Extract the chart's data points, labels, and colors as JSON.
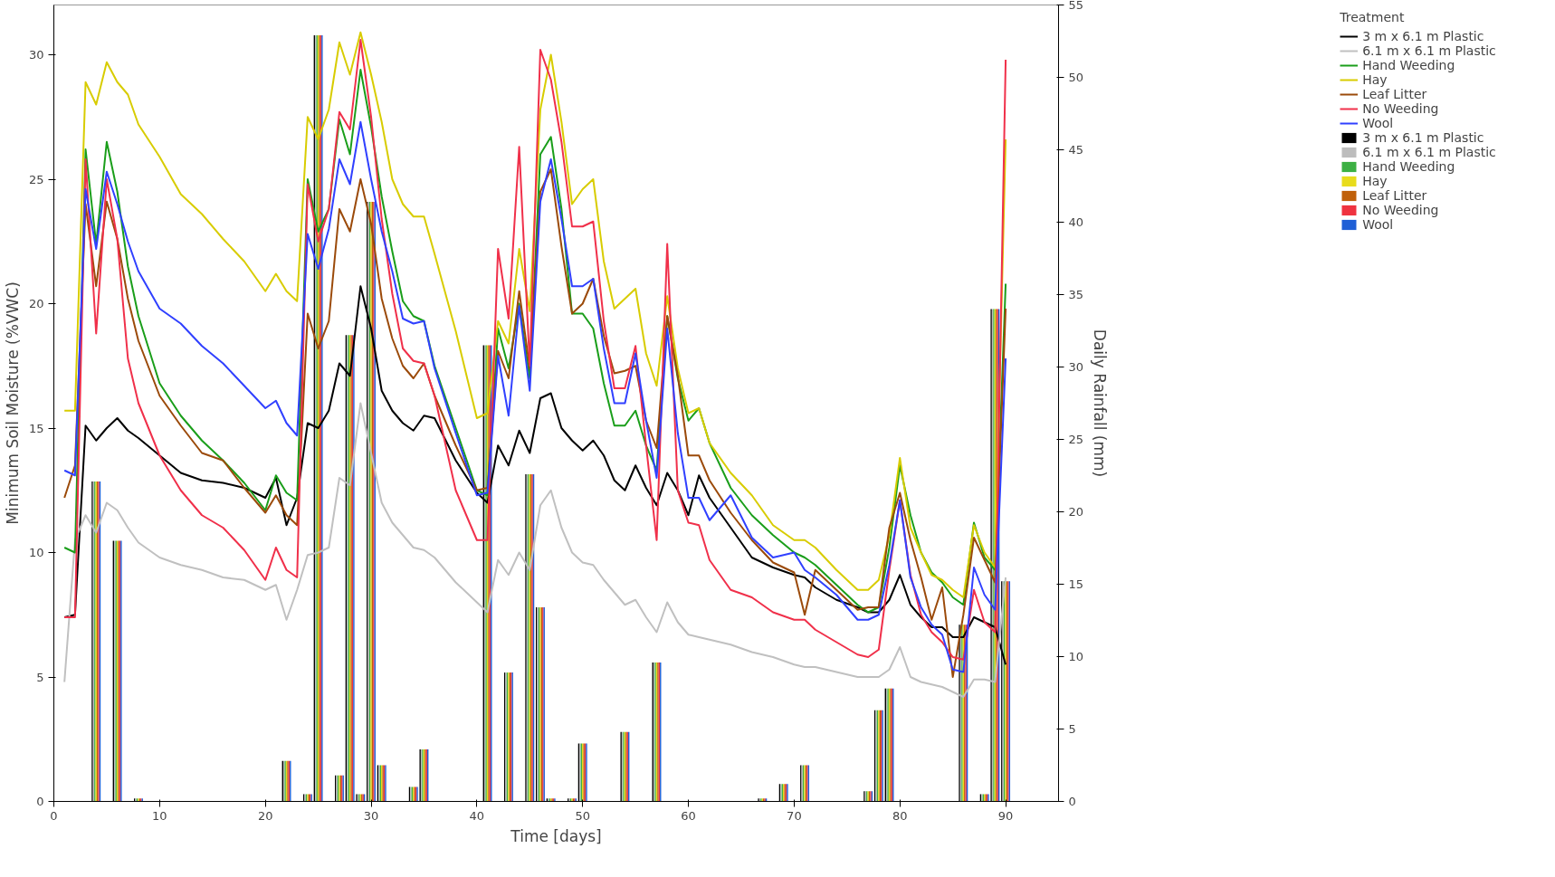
{
  "chart_data": {
    "type": "line",
    "xlabel": "Time [days]",
    "ylabel": "Minimum Soil Moisture (%VWC)",
    "y2label": "Daily Rainfall (mm)",
    "legend_title": "Treatment",
    "x": [
      1,
      2,
      3,
      4,
      5,
      6,
      7,
      8,
      10,
      12,
      14,
      16,
      18,
      20,
      21,
      22,
      23,
      24,
      25,
      26,
      27,
      28,
      29,
      30,
      31,
      32,
      33,
      34,
      35,
      36,
      38,
      40,
      41,
      42,
      43,
      44,
      45,
      46,
      47,
      48,
      49,
      50,
      51,
      52,
      53,
      54,
      55,
      56,
      57,
      58,
      59,
      60,
      61,
      62,
      64,
      66,
      68,
      70,
      71,
      72,
      74,
      76,
      77,
      78,
      79,
      80,
      81,
      82,
      83,
      84,
      85,
      86,
      87,
      88,
      89,
      90
    ],
    "xlim": [
      0,
      95
    ],
    "xticks": [
      0,
      10,
      20,
      30,
      40,
      50,
      60,
      70,
      80,
      90
    ],
    "ylim": [
      0,
      32
    ],
    "yticks": [
      0,
      5,
      10,
      15,
      20,
      25,
      30
    ],
    "y2lim": [
      0,
      55
    ],
    "y2ticks": [
      0,
      5,
      10,
      15,
      20,
      25,
      30,
      35,
      40,
      45,
      50,
      55
    ],
    "grid": false,
    "legend": "right",
    "series": [
      {
        "name": "3 m x 6.1 m Plastic",
        "color": "#000000",
        "values": [
          7.4,
          7.5,
          15.1,
          14.5,
          15.0,
          15.4,
          14.9,
          14.6,
          13.9,
          13.2,
          12.9,
          12.8,
          12.6,
          12.2,
          13.0,
          11.1,
          12.2,
          15.2,
          15.0,
          15.7,
          17.6,
          17.1,
          20.7,
          19.0,
          16.5,
          15.7,
          15.2,
          14.9,
          15.5,
          15.4,
          13.7,
          12.4,
          12.0,
          14.3,
          13.5,
          14.9,
          14.0,
          16.2,
          16.4,
          15.0,
          14.5,
          14.1,
          14.5,
          13.9,
          12.9,
          12.5,
          13.5,
          12.6,
          11.9,
          13.2,
          12.5,
          11.5,
          13.1,
          12.2,
          11.0,
          9.8,
          9.4,
          9.1,
          9.0,
          8.6,
          8.1,
          7.8,
          7.6,
          7.6,
          8.1,
          9.1,
          7.9,
          7.4,
          7.0,
          7.0,
          6.6,
          6.6,
          7.4,
          7.2,
          7.0,
          5.5
        ]
      },
      {
        "name": "6.1 m x 6.1 m Plastic",
        "color": "#c0c0c0",
        "values": [
          4.8,
          10.5,
          11.5,
          10.8,
          12.0,
          11.7,
          11.0,
          10.4,
          9.8,
          9.5,
          9.3,
          9.0,
          8.9,
          8.5,
          8.7,
          7.3,
          8.5,
          9.9,
          10.0,
          10.2,
          13.0,
          12.7,
          16.0,
          14.0,
          12.0,
          11.2,
          10.7,
          10.2,
          10.1,
          9.8,
          8.8,
          8.0,
          7.6,
          9.7,
          9.1,
          10.0,
          9.3,
          11.9,
          12.5,
          11.0,
          10.0,
          9.6,
          9.5,
          8.9,
          8.4,
          7.9,
          8.1,
          7.4,
          6.8,
          8.0,
          7.2,
          6.7,
          6.6,
          6.5,
          6.3,
          6.0,
          5.8,
          5.5,
          5.4,
          5.4,
          5.2,
          5.0,
          5.0,
          5.0,
          5.3,
          6.2,
          5.0,
          4.8,
          4.7,
          4.6,
          4.4,
          4.2,
          4.9,
          4.9,
          4.8,
          9.0
        ]
      },
      {
        "name": "Hand Weeding",
        "color": "#1a9e1a",
        "values": [
          10.2,
          10.0,
          26.2,
          22.4,
          26.5,
          24.5,
          21.5,
          19.5,
          16.8,
          15.5,
          14.5,
          13.7,
          12.8,
          11.7,
          13.1,
          12.4,
          12.1,
          25.0,
          22.9,
          23.8,
          27.4,
          26.0,
          29.4,
          27.1,
          24.3,
          22.1,
          20.1,
          19.5,
          19.3,
          17.5,
          15.0,
          12.5,
          12.3,
          19.0,
          17.4,
          20.0,
          17.0,
          26.0,
          26.7,
          23.8,
          19.6,
          19.6,
          19.0,
          16.8,
          15.1,
          15.1,
          15.7,
          14.3,
          13.3,
          19.5,
          17.0,
          15.3,
          15.8,
          14.4,
          12.6,
          11.5,
          10.7,
          10.0,
          9.8,
          9.5,
          8.7,
          7.9,
          7.6,
          7.8,
          10.2,
          13.5,
          11.5,
          10.0,
          9.2,
          8.8,
          8.2,
          7.9,
          11.2,
          9.8,
          9.3,
          20.8
        ]
      },
      {
        "name": "Hay",
        "color": "#d8cc00",
        "values": [
          15.7,
          15.7,
          28.9,
          28.0,
          29.7,
          28.9,
          28.4,
          27.2,
          25.9,
          24.4,
          23.6,
          22.6,
          21.7,
          20.5,
          21.2,
          20.5,
          20.1,
          27.5,
          26.6,
          27.8,
          30.5,
          29.2,
          30.9,
          29.2,
          27.3,
          25.0,
          24.0,
          23.5,
          23.5,
          22.0,
          18.9,
          15.4,
          15.6,
          19.3,
          18.4,
          22.2,
          19.7,
          27.8,
          30.0,
          27.3,
          24.0,
          24.6,
          25.0,
          21.7,
          19.8,
          20.2,
          20.6,
          18.0,
          16.7,
          20.3,
          17.4,
          15.6,
          15.8,
          14.4,
          13.2,
          12.3,
          11.1,
          10.5,
          10.5,
          10.2,
          9.3,
          8.5,
          8.5,
          8.9,
          10.7,
          13.8,
          11.0,
          10.0,
          9.1,
          8.9,
          8.5,
          8.2,
          11.1,
          10.0,
          9.4,
          26.6
        ]
      },
      {
        "name": "Leaf Litter",
        "color": "#9b4a0a",
        "values": [
          12.2,
          13.5,
          24.0,
          20.7,
          24.1,
          22.6,
          20.2,
          18.5,
          16.3,
          15.1,
          14.0,
          13.7,
          12.6,
          11.6,
          12.3,
          11.5,
          11.1,
          19.6,
          18.2,
          19.3,
          23.8,
          22.9,
          25.0,
          23.2,
          20.2,
          18.6,
          17.5,
          17.0,
          17.6,
          16.3,
          14.3,
          12.5,
          12.6,
          18.1,
          17.0,
          20.5,
          17.4,
          24.5,
          25.4,
          22.3,
          19.6,
          20.0,
          21.0,
          18.7,
          17.2,
          17.3,
          17.5,
          15.3,
          14.2,
          19.5,
          17.1,
          13.9,
          13.9,
          12.9,
          11.6,
          10.5,
          9.6,
          9.2,
          7.5,
          9.3,
          8.5,
          7.7,
          7.8,
          7.8,
          11.0,
          12.4,
          10.5,
          9.0,
          7.3,
          8.6,
          5.0,
          7.5,
          10.6,
          9.7,
          8.8,
          19.8
        ]
      },
      {
        "name": "No Weeding",
        "color": "#f0304a",
        "values": [
          7.4,
          7.4,
          25.8,
          18.8,
          25.0,
          22.6,
          17.8,
          16.0,
          13.9,
          12.5,
          11.5,
          11.0,
          10.1,
          8.9,
          10.2,
          9.3,
          9.0,
          24.8,
          22.5,
          23.8,
          27.7,
          27.0,
          30.6,
          27.5,
          23.4,
          20.4,
          18.2,
          17.7,
          17.6,
          16.3,
          12.5,
          10.5,
          10.5,
          22.2,
          19.4,
          26.3,
          17.5,
          30.2,
          29.0,
          26.5,
          23.1,
          23.1,
          23.3,
          19.3,
          16.6,
          16.6,
          18.3,
          14.3,
          10.5,
          22.4,
          12.5,
          11.2,
          11.1,
          9.7,
          8.5,
          8.2,
          7.6,
          7.3,
          7.3,
          6.9,
          6.4,
          5.9,
          5.8,
          6.1,
          9.3,
          12.1,
          9.1,
          7.5,
          6.8,
          6.4,
          5.8,
          5.7,
          8.5,
          7.2,
          6.8,
          29.8
        ]
      },
      {
        "name": "Wool",
        "color": "#3040ff",
        "values": [
          13.3,
          13.1,
          24.6,
          22.2,
          25.3,
          24.0,
          22.5,
          21.3,
          19.8,
          19.2,
          18.3,
          17.6,
          16.7,
          15.8,
          16.1,
          15.2,
          14.7,
          22.8,
          21.4,
          23.0,
          25.8,
          24.8,
          27.3,
          25.0,
          22.9,
          21.3,
          19.4,
          19.2,
          19.3,
          17.4,
          14.8,
          12.3,
          12.4,
          17.9,
          15.5,
          19.9,
          16.5,
          24.1,
          25.8,
          23.4,
          20.7,
          20.7,
          21.0,
          18.2,
          16.0,
          16.0,
          18.0,
          15.3,
          13.0,
          19.0,
          14.8,
          12.2,
          12.2,
          11.3,
          12.3,
          10.6,
          9.8,
          10.0,
          9.3,
          9.0,
          8.3,
          7.3,
          7.3,
          7.5,
          9.5,
          12.1,
          9.0,
          7.8,
          7.1,
          6.7,
          5.3,
          5.2,
          9.4,
          8.3,
          7.7,
          17.8
        ]
      },
      {
        "name": "3 m x 6.1 m Plastic",
        "type": "bar",
        "axis": "y2",
        "color": "#000000",
        "x": [
          4,
          6,
          8,
          22,
          24,
          25,
          27,
          28,
          29,
          30,
          31,
          34,
          35,
          41,
          43,
          45,
          46,
          47,
          49,
          50,
          54,
          57,
          67,
          69,
          71,
          77,
          78,
          79,
          86,
          88,
          89,
          90
        ],
        "values": [
          22.1,
          18.0,
          0.2,
          2.8,
          0.5,
          52.9,
          1.8,
          32.2,
          0.5,
          41.4,
          2.5,
          1.0,
          3.6,
          31.5,
          8.9,
          22.6,
          13.4,
          0.2,
          0.2,
          4.0,
          4.8,
          9.6,
          0.2,
          1.2,
          2.5,
          0.7,
          6.3,
          7.8,
          12.2,
          0.5,
          34.0,
          15.2
        ]
      },
      {
        "name": "6.1 m x 6.1 m Plastic",
        "type": "bar",
        "axis": "y2",
        "color": "#bdbdbd",
        "x": [
          4,
          6,
          8,
          22,
          24,
          25,
          27,
          28,
          29,
          30,
          31,
          34,
          35,
          41,
          43,
          45,
          46,
          47,
          49,
          50,
          54,
          57,
          67,
          69,
          71,
          77,
          78,
          79,
          86,
          88,
          89,
          90
        ],
        "values": [
          22.1,
          18.0,
          0.2,
          2.8,
          0.5,
          52.9,
          1.8,
          32.2,
          0.5,
          41.4,
          2.5,
          1.0,
          3.6,
          31.5,
          8.9,
          22.6,
          13.4,
          0.2,
          0.2,
          4.0,
          4.8,
          9.6,
          0.2,
          1.2,
          2.5,
          0.7,
          6.3,
          7.8,
          12.2,
          0.5,
          34.0,
          15.2
        ]
      },
      {
        "name": "Hand Weeding",
        "type": "bar",
        "axis": "y2",
        "color": "#3cb043",
        "x": [
          4,
          6,
          8,
          22,
          24,
          25,
          27,
          28,
          29,
          30,
          31,
          34,
          35,
          41,
          43,
          45,
          46,
          47,
          49,
          50,
          54,
          57,
          67,
          69,
          71,
          77,
          78,
          79,
          86,
          88,
          89,
          90
        ],
        "values": [
          22.1,
          18.0,
          0.2,
          2.8,
          0.5,
          52.9,
          1.8,
          32.2,
          0.5,
          41.4,
          2.5,
          1.0,
          3.6,
          31.5,
          8.9,
          22.6,
          13.4,
          0.2,
          0.2,
          4.0,
          4.8,
          9.6,
          0.2,
          1.2,
          2.5,
          0.7,
          6.3,
          7.8,
          12.2,
          0.5,
          34.0,
          15.2
        ]
      },
      {
        "name": "Hay",
        "type": "bar",
        "axis": "y2",
        "color": "#e8dc1c",
        "x": [
          4,
          6,
          8,
          22,
          24,
          25,
          27,
          28,
          29,
          30,
          31,
          34,
          35,
          41,
          43,
          45,
          46,
          47,
          49,
          50,
          54,
          57,
          67,
          69,
          71,
          77,
          78,
          79,
          86,
          88,
          89,
          90
        ],
        "values": [
          22.1,
          18.0,
          0.2,
          2.8,
          0.5,
          52.9,
          1.8,
          32.2,
          0.5,
          41.4,
          2.5,
          1.0,
          3.6,
          31.5,
          8.9,
          22.6,
          13.4,
          0.2,
          0.2,
          4.0,
          4.8,
          9.6,
          0.2,
          1.2,
          2.5,
          0.7,
          6.3,
          7.8,
          12.2,
          0.5,
          34.0,
          15.2
        ]
      },
      {
        "name": "Leaf Litter",
        "type": "bar",
        "axis": "y2",
        "color": "#c0600a",
        "x": [
          4,
          6,
          8,
          22,
          24,
          25,
          27,
          28,
          29,
          30,
          31,
          34,
          35,
          41,
          43,
          45,
          46,
          47,
          49,
          50,
          54,
          57,
          67,
          69,
          71,
          77,
          78,
          79,
          86,
          88,
          89,
          90
        ],
        "values": [
          22.1,
          18.0,
          0.2,
          2.8,
          0.5,
          52.9,
          1.8,
          32.2,
          0.5,
          41.4,
          2.5,
          1.0,
          3.6,
          31.5,
          8.9,
          22.6,
          13.4,
          0.2,
          0.2,
          4.0,
          4.8,
          9.6,
          0.2,
          1.2,
          2.5,
          0.7,
          6.3,
          7.8,
          12.2,
          0.5,
          34.0,
          15.2
        ]
      },
      {
        "name": "No Weeding",
        "type": "bar",
        "axis": "y2",
        "color": "#ef3340",
        "x": [
          4,
          6,
          8,
          22,
          24,
          25,
          27,
          28,
          29,
          30,
          31,
          34,
          35,
          41,
          43,
          45,
          46,
          47,
          49,
          50,
          54,
          57,
          67,
          69,
          71,
          77,
          78,
          79,
          86,
          88,
          89,
          90
        ],
        "values": [
          22.1,
          18.0,
          0.2,
          2.8,
          0.5,
          52.9,
          1.8,
          32.2,
          0.5,
          41.4,
          2.5,
          1.0,
          3.6,
          31.5,
          8.9,
          22.6,
          13.4,
          0.2,
          0.2,
          4.0,
          4.8,
          9.6,
          0.2,
          1.2,
          2.5,
          0.7,
          6.3,
          7.8,
          12.2,
          0.5,
          34.0,
          15.2
        ]
      },
      {
        "name": "Wool",
        "type": "bar",
        "axis": "y2",
        "color": "#1f5fd6",
        "x": [
          4,
          6,
          8,
          22,
          24,
          25,
          27,
          28,
          29,
          30,
          31,
          34,
          35,
          41,
          43,
          45,
          46,
          47,
          49,
          50,
          54,
          57,
          67,
          69,
          71,
          77,
          78,
          79,
          86,
          88,
          89,
          90
        ],
        "values": [
          22.1,
          18.0,
          0.2,
          2.8,
          0.5,
          52.9,
          1.8,
          32.2,
          0.5,
          41.4,
          2.5,
          1.0,
          3.6,
          31.5,
          8.9,
          22.6,
          13.4,
          0.2,
          0.2,
          4.0,
          4.8,
          9.6,
          0.2,
          1.2,
          2.5,
          0.7,
          6.3,
          7.8,
          12.2,
          0.5,
          34.0,
          15.2
        ]
      }
    ]
  }
}
